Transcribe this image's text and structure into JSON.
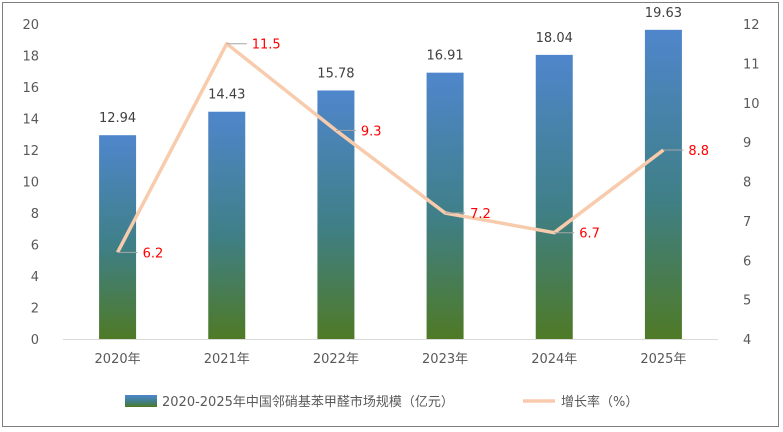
{
  "chart_data": {
    "type": "bar",
    "categories": [
      "2020年",
      "2021年",
      "2022年",
      "2023年",
      "2024年",
      "2025年"
    ],
    "series": [
      {
        "name": "2020-2025年中国邻硝基苯甲醛市场规模（亿元）",
        "type": "bar",
        "axis": "left",
        "values": [
          12.94,
          14.43,
          15.78,
          16.91,
          18.04,
          19.63
        ],
        "labels": [
          "12.94",
          "14.43",
          "15.78",
          "16.91",
          "18.04",
          "19.63"
        ]
      },
      {
        "name": "增长率（%）",
        "type": "line",
        "axis": "right",
        "values": [
          6.2,
          11.5,
          9.3,
          7.2,
          6.7,
          8.8
        ],
        "labels": [
          "6.2",
          "11.5",
          "9.3",
          "7.2",
          "6.7",
          "8.8"
        ]
      }
    ],
    "y_left": {
      "lim": [
        0,
        20
      ],
      "ticks": [
        "0",
        "2",
        "4",
        "6",
        "8",
        "10",
        "12",
        "14",
        "16",
        "18",
        "20"
      ]
    },
    "y_right": {
      "lim": [
        4,
        12
      ],
      "ticks": [
        "4",
        "5",
        "6",
        "7",
        "8",
        "9",
        "10",
        "11",
        "12"
      ]
    },
    "grid": false,
    "legend_position": "bottom",
    "colors": {
      "bar_top": "#4f86cc",
      "bar_mid": "#3f7f86",
      "bar_bottom": "#4f7a26",
      "line": "#f8cbad",
      "line_label": "#ff0000",
      "axis_text": "#595959",
      "value_label": "#404040"
    }
  }
}
